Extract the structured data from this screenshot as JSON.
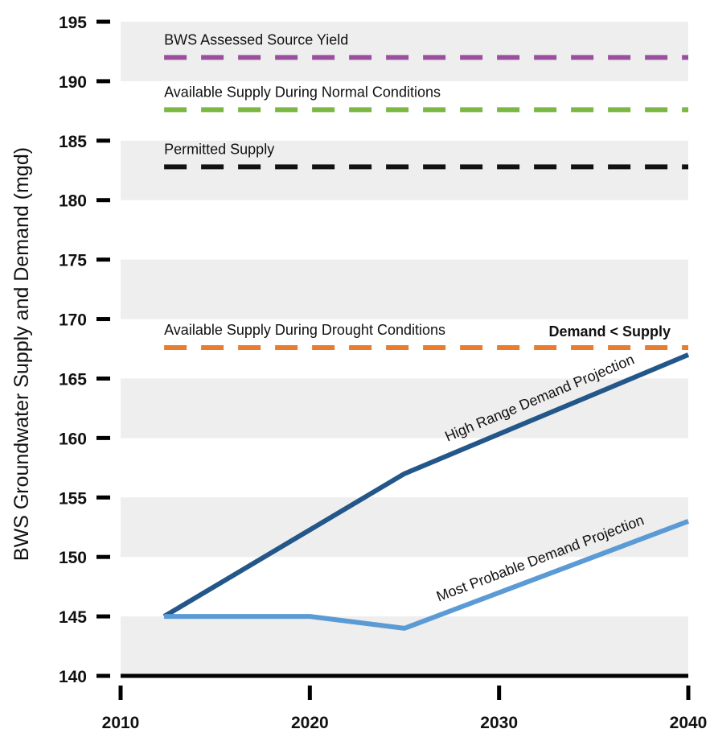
{
  "chart_data": {
    "type": "line",
    "xlabel": "",
    "ylabel": "BWS Groundwater Supply and Demand (mgd)",
    "xlim": [
      2010,
      2040
    ],
    "ylim": [
      140,
      195
    ],
    "x_ticks": [
      2010,
      2020,
      2030,
      2040
    ],
    "y_ticks": [
      140,
      145,
      150,
      155,
      160,
      165,
      170,
      175,
      180,
      185,
      190,
      195
    ],
    "grid": "alternating horizontal bands",
    "reference_lines": [
      {
        "label": "BWS Assessed Source Yield",
        "value": 192,
        "x_start": 2012.3,
        "color": "#9b4f9f",
        "style": "dashed"
      },
      {
        "label": "Available Supply During Normal Conditions",
        "value": 187.6,
        "x_start": 2012.3,
        "color": "#7ab843",
        "style": "dashed"
      },
      {
        "label": "Permitted Supply",
        "value": 182.8,
        "x_start": 2012.3,
        "color": "#111111",
        "style": "dashed"
      },
      {
        "label": "Available Supply During Drought Conditions",
        "value": 167.6,
        "x_start": 2012.3,
        "color": "#e87d2f",
        "style": "dashed"
      }
    ],
    "annotations": [
      {
        "text": "Demand < Supply",
        "bold": true
      }
    ],
    "series": [
      {
        "name": "High Range Demand Projection",
        "color": "#235789",
        "x": [
          2012.3,
          2025,
          2040
        ],
        "y": [
          145,
          157,
          167
        ]
      },
      {
        "name": "Most Probable Demand Projection",
        "color": "#5b9bd5",
        "x": [
          2012.3,
          2020,
          2025,
          2040
        ],
        "y": [
          145,
          145,
          144,
          153
        ]
      }
    ],
    "colors": {
      "band": "#eeeeee",
      "axis": "#000000"
    }
  }
}
